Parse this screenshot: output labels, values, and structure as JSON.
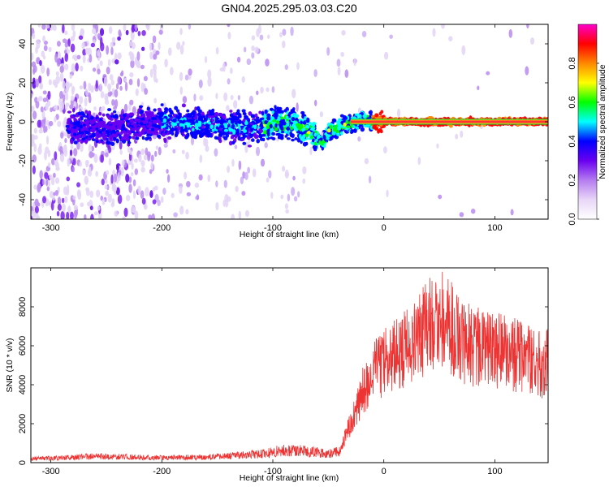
{
  "title": "GN04.2025.295.03.03.C20",
  "colors": {
    "snr_line": "#ee3333",
    "ridge": "#ff3333",
    "background": "#ffffff"
  },
  "chart_data": [
    {
      "type": "heatmap",
      "name": "spectrogram",
      "xlabel": "Height of straight line (km)",
      "ylabel": "Frequency (Hz)",
      "xlim": [
        -318,
        148
      ],
      "ylim": [
        -50,
        50
      ],
      "xticks": [
        -300,
        -200,
        -100,
        0,
        100
      ],
      "yticks": [
        -40,
        -20,
        0,
        20,
        40
      ],
      "ridge": {
        "x": [
          -280,
          -240,
          -200,
          -170,
          -140,
          -120,
          -100,
          -80,
          -70,
          -60,
          -55,
          -50,
          -45,
          -40,
          -35,
          -30,
          -20,
          -10,
          0,
          20,
          50,
          100,
          148
        ],
        "y": [
          -3,
          -3,
          0,
          -1,
          -2,
          -3,
          -1,
          -1,
          -4,
          -8,
          -11,
          -5,
          -4,
          -3,
          -1,
          -1,
          1,
          0,
          0,
          0,
          0,
          0,
          0
        ]
      },
      "colorbar": {
        "label": "Normalized spectral amplitude",
        "range": [
          0,
          1
        ],
        "ticks": [
          "0.0",
          "0.2",
          "0.4",
          "0.6",
          "0.8"
        ],
        "tick_values": [
          0,
          0.2,
          0.4,
          0.6,
          0.8
        ],
        "colors": [
          "#ffffff",
          "#e8d6f7",
          "#b57cf0",
          "#6a00f0",
          "#0000ff",
          "#00ffff",
          "#00ff00",
          "#ffff00",
          "#ff8800",
          "#ff0000",
          "#ff00cc"
        ]
      }
    },
    {
      "type": "line",
      "name": "snr",
      "xlabel": "Height of straight line (km)",
      "ylabel": "SNR (10 * v/v)",
      "xlim": [
        -318,
        148
      ],
      "ylim": [
        0,
        10000
      ],
      "xticks": [
        -300,
        -200,
        -100,
        0,
        100
      ],
      "yticks": [
        0,
        2000,
        4000,
        6000,
        8000
      ],
      "envelope": {
        "x": [
          -318,
          -290,
          -260,
          -200,
          -150,
          -110,
          -90,
          -70,
          -50,
          -40,
          -30,
          -20,
          -10,
          0,
          20,
          40,
          50,
          60,
          70,
          80,
          100,
          120,
          140,
          148
        ],
        "y": [
          200,
          250,
          330,
          250,
          300,
          450,
          650,
          600,
          450,
          600,
          2000,
          3500,
          4600,
          5200,
          6000,
          7000,
          7600,
          7000,
          6200,
          6000,
          5800,
          5500,
          5000,
          5200
        ]
      }
    }
  ]
}
